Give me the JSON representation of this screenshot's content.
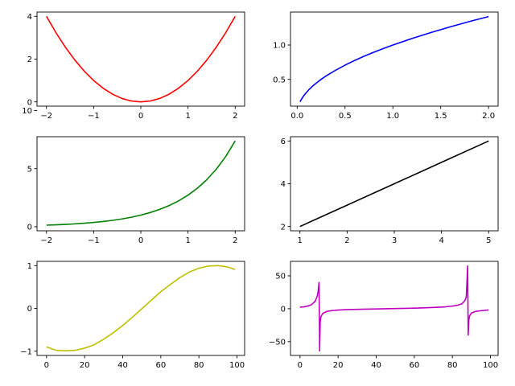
{
  "chart_data": [
    {
      "type": "line",
      "color": "#ff0000",
      "x": [
        -2.0,
        -1.8,
        -1.6,
        -1.4,
        -1.2,
        -1.0,
        -0.8,
        -0.6,
        -0.4,
        -0.2,
        0.0,
        0.2,
        0.4,
        0.6,
        0.8,
        1.0,
        1.2,
        1.4,
        1.6,
        1.8,
        2.0
      ],
      "y": [
        4.0,
        3.24,
        2.56,
        1.96,
        1.44,
        1.0,
        0.64,
        0.36,
        0.16,
        0.04,
        0.0,
        0.04,
        0.16,
        0.36,
        0.64,
        1.0,
        1.44,
        1.96,
        2.56,
        3.24,
        4.0
      ],
      "xlim": [
        -2.2,
        2.2
      ],
      "ylim": [
        -0.2,
        4.2
      ],
      "xticks": [
        -2,
        -1,
        0,
        1,
        2
      ],
      "xtick_labels": [
        "−2",
        "−1",
        "0",
        "1",
        "2"
      ],
      "yticks": [
        0,
        2,
        4
      ],
      "ytick_labels": [
        "0",
        "2",
        "4"
      ],
      "grid": false
    },
    {
      "type": "line",
      "color": "#0000ff",
      "x": [
        0.03,
        0.05,
        0.08,
        0.12,
        0.16,
        0.2,
        0.25,
        0.3,
        0.4,
        0.5,
        0.6,
        0.7,
        0.8,
        0.9,
        1.0,
        1.2,
        1.4,
        1.6,
        1.8,
        2.0
      ],
      "y": [
        0.173,
        0.224,
        0.283,
        0.346,
        0.4,
        0.447,
        0.5,
        0.548,
        0.632,
        0.707,
        0.775,
        0.837,
        0.894,
        0.949,
        1.0,
        1.095,
        1.183,
        1.265,
        1.342,
        1.414
      ],
      "xlim": [
        -0.07,
        2.1
      ],
      "ylim": [
        0.11,
        1.48
      ],
      "xticks": [
        0.0,
        0.5,
        1.0,
        1.5,
        2.0
      ],
      "xtick_labels": [
        "0.0",
        "0.5",
        "1.0",
        "1.5",
        "2.0"
      ],
      "yticks": [
        0.5,
        1.0
      ],
      "ytick_labels": [
        "0.5",
        "1.0"
      ],
      "grid": false
    },
    {
      "type": "line",
      "color": "#008000",
      "x": [
        -2.0,
        -1.8,
        -1.6,
        -1.4,
        -1.2,
        -1.0,
        -0.8,
        -0.6,
        -0.4,
        -0.2,
        0.0,
        0.2,
        0.4,
        0.6,
        0.8,
        1.0,
        1.2,
        1.4,
        1.6,
        1.8,
        2.0
      ],
      "y": [
        0.135,
        0.165,
        0.202,
        0.247,
        0.301,
        0.368,
        0.449,
        0.549,
        0.67,
        0.819,
        1.0,
        1.221,
        1.492,
        1.822,
        2.226,
        2.718,
        3.32,
        4.055,
        4.953,
        6.05,
        7.389
      ],
      "xlim": [
        -2.2,
        2.2
      ],
      "ylim": [
        -0.35,
        7.75
      ],
      "xticks": [
        -2,
        -1,
        0,
        1,
        2
      ],
      "xtick_labels": [
        "−2",
        "−1",
        "0",
        "1",
        "2"
      ],
      "yticks": [
        0,
        5,
        10
      ],
      "ytick_labels": [
        "0",
        "5",
        "10"
      ],
      "grid": false
    },
    {
      "type": "line",
      "color": "#000000",
      "x": [
        1,
        2,
        3,
        4,
        5
      ],
      "y": [
        2,
        3,
        4,
        5,
        6
      ],
      "xlim": [
        0.8,
        5.2
      ],
      "ylim": [
        1.8,
        6.2
      ],
      "xticks": [
        1,
        2,
        3,
        4,
        5
      ],
      "xtick_labels": [
        "1",
        "2",
        "3",
        "4",
        "5"
      ],
      "yticks": [
        2,
        4,
        6
      ],
      "ytick_labels": [
        "2",
        "4",
        "6"
      ],
      "grid": false
    },
    {
      "type": "line",
      "color": "#bfbf00",
      "x": [
        0,
        5,
        10,
        15,
        20,
        25,
        30,
        35,
        40,
        45,
        50,
        55,
        60,
        65,
        70,
        75,
        80,
        85,
        90,
        95,
        99
      ],
      "y": [
        -0.9,
        -0.98,
        -0.99,
        -0.98,
        -0.93,
        -0.85,
        -0.72,
        -0.57,
        -0.4,
        -0.21,
        -0.01,
        0.19,
        0.39,
        0.56,
        0.72,
        0.85,
        0.94,
        0.99,
        1.0,
        0.97,
        0.91
      ],
      "xlim": [
        -5,
        104
      ],
      "ylim": [
        -1.1,
        1.1
      ],
      "xticks": [
        0,
        20,
        40,
        60,
        80,
        100
      ],
      "xtick_labels": [
        "0",
        "20",
        "40",
        "60",
        "80",
        "100"
      ],
      "yticks": [
        -1,
        0,
        1
      ],
      "ytick_labels": [
        "−1",
        "0",
        "1"
      ],
      "grid": false
    },
    {
      "type": "line",
      "color": "#bf00bf",
      "x": [
        0,
        2,
        4,
        6,
        8,
        9,
        9.5,
        10,
        10.3,
        10.6,
        11,
        12,
        14,
        17,
        20,
        25,
        30,
        35,
        40,
        45,
        50,
        55,
        60,
        65,
        70,
        75,
        80,
        83,
        85,
        86.5,
        87.3,
        88,
        88.3,
        88.6,
        89,
        90,
        92,
        94,
        96,
        98,
        99
      ],
      "y": [
        2.3,
        2.9,
        4.0,
        6.1,
        11.5,
        19,
        26,
        40,
        -64,
        -20,
        -12,
        -7,
        -4.2,
        -2.7,
        -2.0,
        -1.3,
        -0.9,
        -0.6,
        -0.3,
        0,
        0.3,
        0.6,
        0.9,
        1.3,
        1.9,
        2.5,
        4.0,
        5.5,
        7.5,
        12,
        18,
        65,
        -40,
        -18,
        -11,
        -6.5,
        -4.2,
        -3.3,
        -2.7,
        -2.2,
        -2.0
      ],
      "xlim": [
        -5,
        104
      ],
      "ylim": [
        -71,
        72
      ],
      "xticks": [
        0,
        20,
        40,
        60,
        80,
        100
      ],
      "xtick_labels": [
        "0",
        "20",
        "40",
        "60",
        "80",
        "100"
      ],
      "yticks": [
        -50,
        0,
        50
      ],
      "ytick_labels": [
        "−50",
        "0",
        "50"
      ],
      "grid": false
    }
  ]
}
